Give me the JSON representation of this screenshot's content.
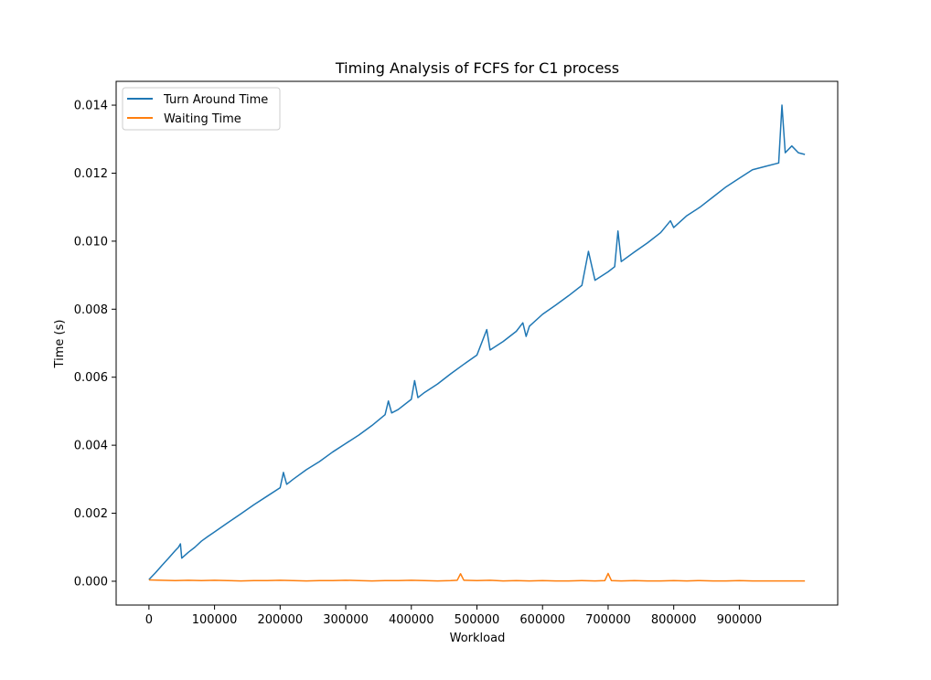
{
  "chart_data": {
    "type": "line",
    "title": "Timing Analysis of FCFS for C1 process",
    "xlabel": "Workload",
    "ylabel": "Time (s)",
    "xlim": [
      -50000,
      1050000
    ],
    "ylim": [
      -0.0007,
      0.0147
    ],
    "x_ticks": [
      0,
      100000,
      200000,
      300000,
      400000,
      500000,
      600000,
      700000,
      800000,
      900000
    ],
    "x_tick_labels": [
      "0",
      "100000",
      "200000",
      "300000",
      "400000",
      "500000",
      "600000",
      "700000",
      "800000",
      "900000"
    ],
    "y_ticks": [
      0.0,
      0.002,
      0.004,
      0.006,
      0.008,
      0.01,
      0.012,
      0.014
    ],
    "y_tick_labels": [
      "0.000",
      "0.002",
      "0.004",
      "0.006",
      "0.008",
      "0.010",
      "0.012",
      "0.014"
    ],
    "legend": {
      "placement": "upper-left"
    },
    "grid": false,
    "series": [
      {
        "name": "Turn Around Time",
        "color": "#1f77b4",
        "x": [
          0,
          10000,
          20000,
          30000,
          40000,
          45000,
          48000,
          50000,
          60000,
          70000,
          80000,
          90000,
          100000,
          120000,
          140000,
          160000,
          180000,
          200000,
          205000,
          210000,
          220000,
          240000,
          260000,
          280000,
          300000,
          320000,
          340000,
          360000,
          365000,
          370000,
          380000,
          400000,
          405000,
          410000,
          420000,
          440000,
          460000,
          480000,
          500000,
          515000,
          520000,
          540000,
          560000,
          570000,
          575000,
          580000,
          600000,
          620000,
          640000,
          660000,
          670000,
          680000,
          700000,
          710000,
          715000,
          720000,
          740000,
          760000,
          780000,
          795000,
          800000,
          820000,
          840000,
          860000,
          880000,
          900000,
          920000,
          940000,
          960000,
          965000,
          970000,
          980000,
          990000,
          1000000
        ],
        "y": [
          5e-05,
          0.00025,
          0.00047,
          0.00068,
          0.0009,
          0.001,
          0.0011,
          0.00068,
          0.00085,
          0.001,
          0.00118,
          0.00132,
          0.00145,
          0.00172,
          0.00198,
          0.00225,
          0.0025,
          0.00275,
          0.0032,
          0.00285,
          0.003,
          0.00328,
          0.00352,
          0.0038,
          0.00405,
          0.0043,
          0.00458,
          0.0049,
          0.0053,
          0.00495,
          0.00505,
          0.00535,
          0.0059,
          0.0054,
          0.00555,
          0.0058,
          0.0061,
          0.00638,
          0.00665,
          0.0074,
          0.0068,
          0.00705,
          0.00735,
          0.0076,
          0.0072,
          0.0075,
          0.00785,
          0.00812,
          0.0084,
          0.0087,
          0.0097,
          0.00885,
          0.0091,
          0.00925,
          0.0103,
          0.0094,
          0.00968,
          0.00995,
          0.01025,
          0.0106,
          0.0104,
          0.01075,
          0.011,
          0.0113,
          0.0116,
          0.01185,
          0.0121,
          0.0122,
          0.0123,
          0.014,
          0.0126,
          0.0128,
          0.0126,
          0.01255
        ]
      },
      {
        "name": "Waiting Time",
        "color": "#ff7f0e",
        "x": [
          0,
          20000,
          40000,
          60000,
          80000,
          100000,
          120000,
          140000,
          160000,
          180000,
          200000,
          220000,
          240000,
          260000,
          280000,
          300000,
          320000,
          340000,
          360000,
          380000,
          400000,
          420000,
          440000,
          460000,
          470000,
          475000,
          480000,
          500000,
          520000,
          540000,
          560000,
          580000,
          600000,
          620000,
          640000,
          660000,
          680000,
          695000,
          700000,
          705000,
          720000,
          740000,
          760000,
          780000,
          800000,
          820000,
          840000,
          860000,
          880000,
          900000,
          920000,
          940000,
          960000,
          980000,
          1000000
        ],
        "y": [
          4e-05,
          3e-05,
          2e-05,
          3e-05,
          2e-05,
          3e-05,
          2e-05,
          1e-05,
          2e-05,
          2e-05,
          3e-05,
          2e-05,
          1e-05,
          2e-05,
          2e-05,
          3e-05,
          2e-05,
          1e-05,
          2e-05,
          2e-05,
          3e-05,
          2e-05,
          1e-05,
          2e-05,
          3e-05,
          0.00022,
          3e-05,
          2e-05,
          3e-05,
          1e-05,
          2e-05,
          1e-05,
          2e-05,
          1e-05,
          1e-05,
          2e-05,
          1e-05,
          2e-05,
          0.00023,
          2e-05,
          1e-05,
          2e-05,
          1e-05,
          1e-05,
          2e-05,
          1e-05,
          2e-05,
          1e-05,
          1e-05,
          2e-05,
          1e-05,
          1e-05,
          1e-05,
          1e-05,
          1e-05
        ]
      }
    ]
  }
}
